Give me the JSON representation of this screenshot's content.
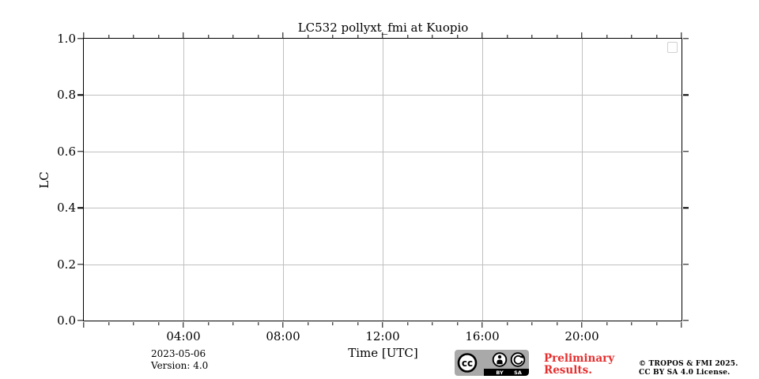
{
  "chart_data": {
    "type": "line",
    "title": "LC532 pollyxt_fmi at Kuopio",
    "xlabel": "Time [UTC]",
    "ylabel": "LC",
    "xlim": [
      0,
      24
    ],
    "ylim": [
      0.0,
      1.0
    ],
    "x_major_ticks": {
      "positions": [
        4,
        8,
        12,
        16,
        20
      ],
      "labels": [
        "04:00",
        "08:00",
        "12:00",
        "16:00",
        "20:00"
      ]
    },
    "x_edge_ticks": [
      0,
      24
    ],
    "x_minor_ticks": [
      1,
      2,
      3,
      5,
      6,
      7,
      9,
      10,
      11,
      13,
      14,
      15,
      17,
      18,
      19,
      21,
      22,
      23
    ],
    "y_major_ticks": {
      "positions": [
        0.0,
        0.2,
        0.4,
        0.6,
        0.8,
        1.0
      ],
      "labels": [
        "0.0",
        "0.2",
        "0.4",
        "0.6",
        "0.8",
        "1.0"
      ]
    },
    "grid": true,
    "legend": {
      "visible": true,
      "position": "upper right",
      "entries": []
    },
    "series": []
  },
  "footer": {
    "date": "2023-05-06",
    "version": "Version: 4.0",
    "preliminary": {
      "line1": "Preliminary",
      "line2": "Results."
    },
    "copyright": {
      "line1": "© TROPOS & FMI 2025.",
      "line2": "CC BY SA 4.0 License."
    },
    "license_badge": {
      "cc": "cc",
      "by": "BY",
      "sa": "SA"
    }
  },
  "colors": {
    "grid": "#c0c0c0",
    "spine": "#000000",
    "text": "#000000",
    "preliminary_red": "#e62e2e",
    "badge_bg": "#a9a9a9",
    "legend_border": "#d0d0d0"
  }
}
